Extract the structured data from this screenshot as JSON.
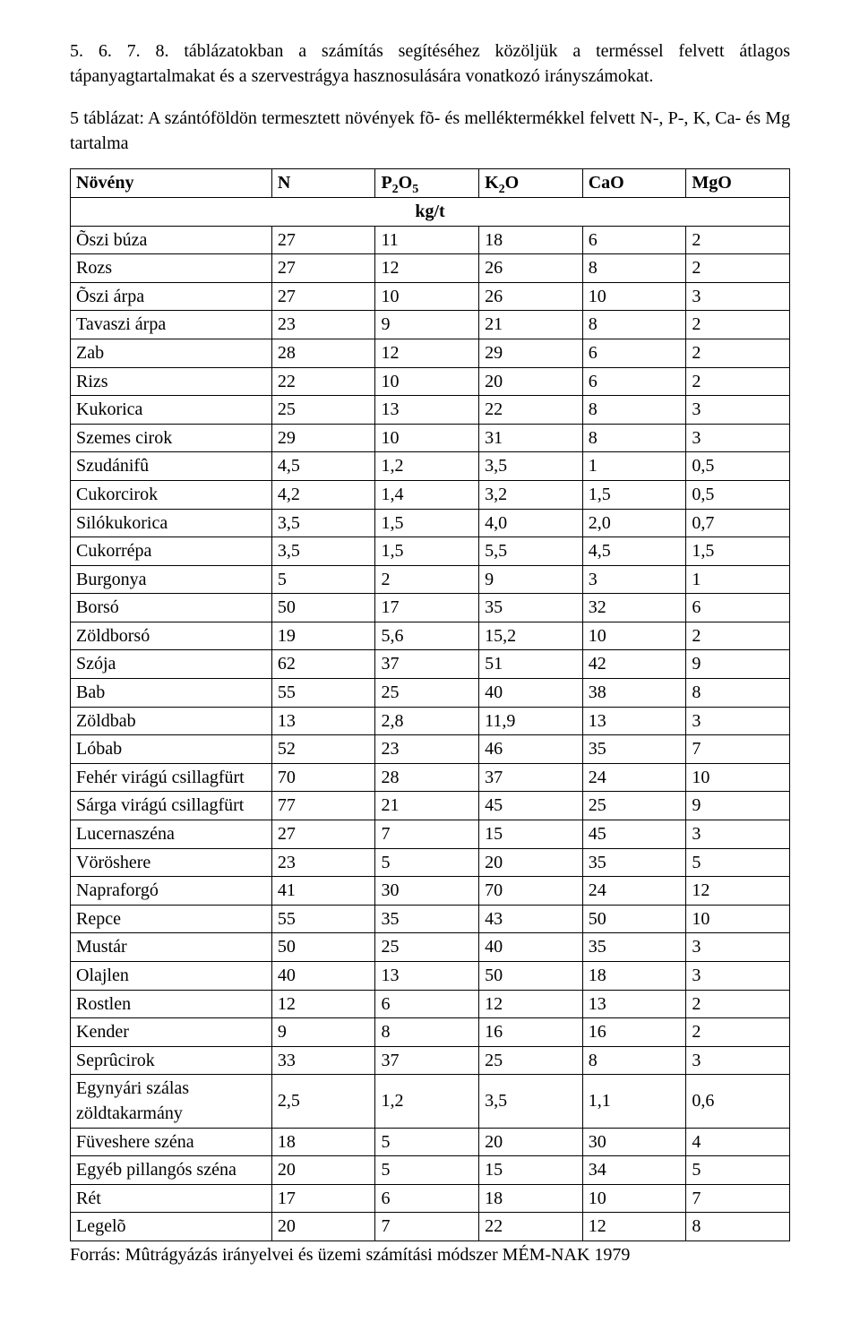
{
  "intro_text": "5. 6. 7. 8. táblázatokban a számítás segítéséhez közöljük a terméssel felvett átlagos tápanyagtartalmakat és a szervestrágya hasznosulására vonatkozó irányszámokat.",
  "caption_text": "5 táblázat: A szántóföldön termesztett növények fõ- és melléktermékkel felvett N-, P-, K, Ca- és Mg tartalma",
  "source_text": "Forrás: Mûtrágyázás irányelvei és üzemi számítási módszer MÉM-NAK 1979",
  "table": {
    "headers": [
      "Növény",
      "N",
      "P₂O₅",
      "K₂O",
      "CaO",
      "MgO"
    ],
    "unit_label": "kg/t",
    "rows": [
      [
        "Õszi búza",
        "27",
        "11",
        "18",
        "6",
        "2"
      ],
      [
        "Rozs",
        "27",
        "12",
        "26",
        "8",
        "2"
      ],
      [
        "Õszi árpa",
        "27",
        "10",
        "26",
        "10",
        "3"
      ],
      [
        "Tavaszi árpa",
        "23",
        "9",
        "21",
        "8",
        "2"
      ],
      [
        "Zab",
        "28",
        "12",
        "29",
        "6",
        "2"
      ],
      [
        "Rizs",
        "22",
        "10",
        "20",
        "6",
        "2"
      ],
      [
        "Kukorica",
        "25",
        "13",
        "22",
        "8",
        "3"
      ],
      [
        "Szemes cirok",
        "29",
        "10",
        "31",
        "8",
        "3"
      ],
      [
        "Szudánifû",
        "4,5",
        "1,2",
        "3,5",
        "1",
        "0,5"
      ],
      [
        "Cukorcirok",
        "4,2",
        "1,4",
        "3,2",
        "1,5",
        "0,5"
      ],
      [
        "Silókukorica",
        "3,5",
        "1,5",
        "4,0",
        "2,0",
        "0,7"
      ],
      [
        "Cukorrépa",
        "3,5",
        "1,5",
        "5,5",
        "4,5",
        "1,5"
      ],
      [
        "Burgonya",
        "5",
        "2",
        "9",
        "3",
        "1"
      ],
      [
        "Borsó",
        "50",
        "17",
        "35",
        "32",
        "6"
      ],
      [
        "Zöldborsó",
        "19",
        "5,6",
        "15,2",
        "10",
        "2"
      ],
      [
        "Szója",
        "62",
        "37",
        "51",
        "42",
        "9"
      ],
      [
        "Bab",
        "55",
        "25",
        "40",
        "38",
        "8"
      ],
      [
        "Zöldbab",
        "13",
        "2,8",
        "11,9",
        "13",
        "3"
      ],
      [
        "Lóbab",
        "52",
        "23",
        "46",
        "35",
        "7"
      ],
      [
        "Fehér virágú csillagfürt",
        "70",
        "28",
        "37",
        "24",
        "10"
      ],
      [
        "Sárga virágú csillagfürt",
        "77",
        "21",
        "45",
        "25",
        "9"
      ],
      [
        "Lucernaszéna",
        "27",
        "7",
        "15",
        "45",
        "3"
      ],
      [
        "Vöröshere",
        "23",
        "5",
        "20",
        "35",
        "5"
      ],
      [
        "Napraforgó",
        "41",
        "30",
        "70",
        "24",
        "12"
      ],
      [
        "Repce",
        "55",
        "35",
        "43",
        "50",
        "10"
      ],
      [
        "Mustár",
        "50",
        "25",
        "40",
        "35",
        "3"
      ],
      [
        "Olajlen",
        "40",
        "13",
        "50",
        "18",
        "3"
      ],
      [
        "Rostlen",
        "12",
        "6",
        "12",
        "13",
        "2"
      ],
      [
        "Kender",
        "9",
        "8",
        "16",
        "16",
        "2"
      ],
      [
        "Seprûcirok",
        "33",
        "37",
        "25",
        "8",
        "3"
      ],
      [
        "Egynyári szálas zöldtakarmány",
        "2,5",
        "1,2",
        "3,5",
        "1,1",
        "0,6"
      ],
      [
        "Füveshere széna",
        "18",
        "5",
        "20",
        "30",
        "4"
      ],
      [
        "Egyéb pillangós széna",
        "20",
        "5",
        "15",
        "34",
        "5"
      ],
      [
        "Rét",
        "17",
        "6",
        "18",
        "10",
        "7"
      ],
      [
        "Legelõ",
        "20",
        "7",
        "22",
        "12",
        "8"
      ]
    ]
  }
}
